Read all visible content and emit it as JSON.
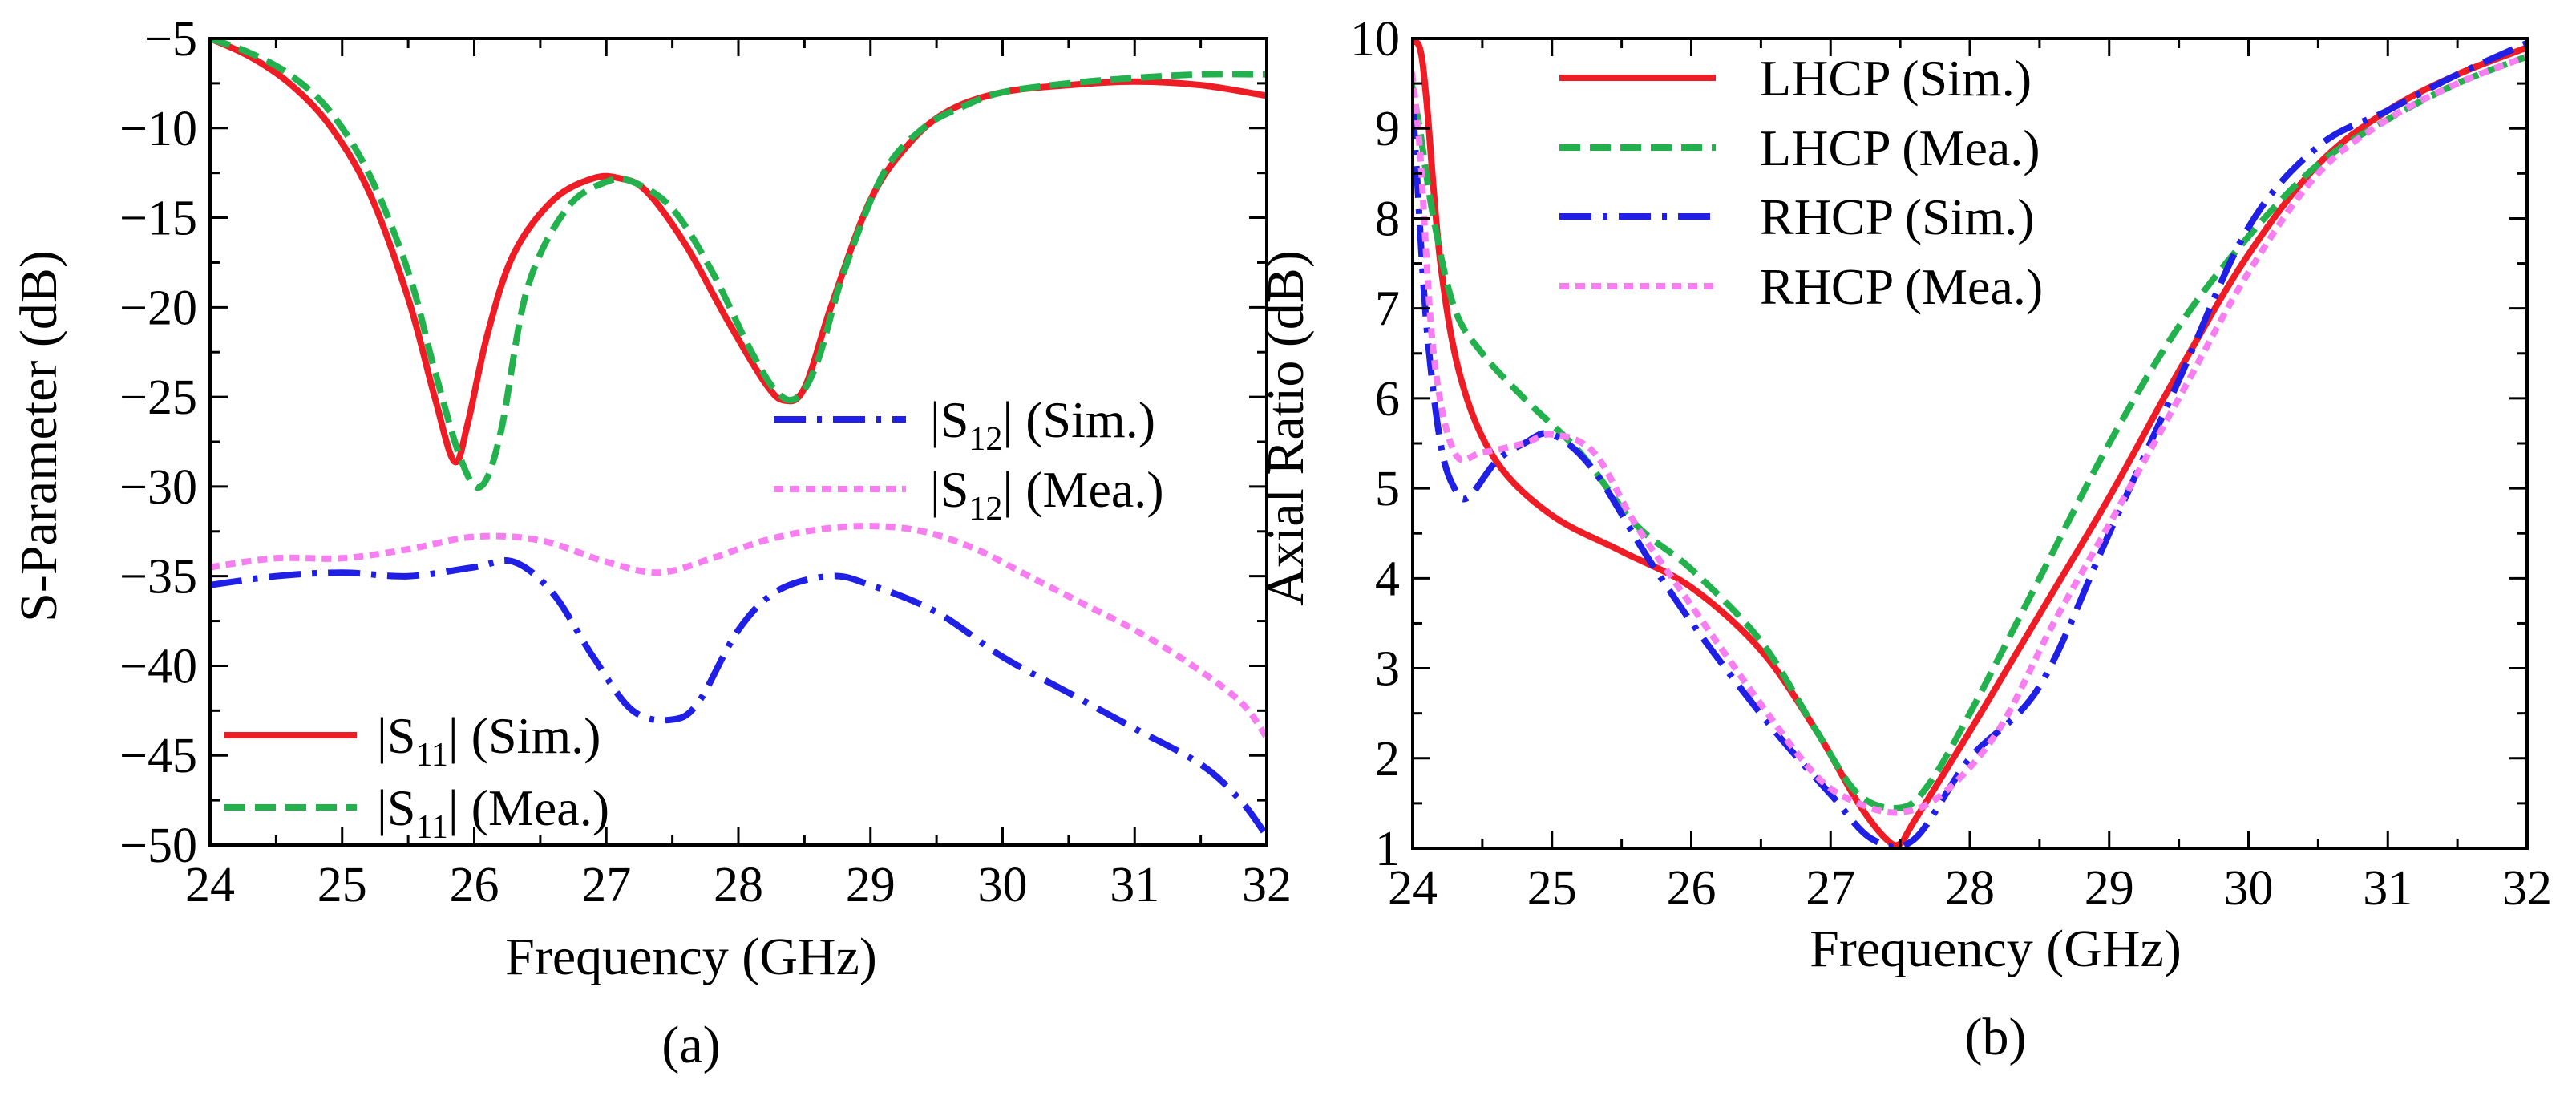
{
  "chart_data": [
    {
      "type": "line",
      "panel_label": "(a)",
      "xlabel": "Frequency (GHz)",
      "ylabel": "S-Parameter (dB)",
      "xlim": [
        24,
        32
      ],
      "ylim": [
        -50,
        -5
      ],
      "xticks": [
        24,
        25,
        26,
        27,
        28,
        29,
        30,
        31,
        32
      ],
      "yticks": [
        -5,
        -10,
        -15,
        -20,
        -25,
        -30,
        -35,
        -40,
        -45,
        -50
      ],
      "xtick_labels": [
        "24",
        "25",
        "26",
        "27",
        "28",
        "29",
        "30",
        "31",
        "32"
      ],
      "ytick_labels": [
        "−5",
        "−10",
        "−15",
        "−20",
        "−25",
        "−30",
        "−35",
        "−40",
        "−45",
        "−50"
      ],
      "series": [
        {
          "name": "|S11| (Sim.)",
          "label_main": "|S",
          "label_sub": "11",
          "label_tail": "| (Sim.)",
          "color": "#ee1c25",
          "style": "solid",
          "x": [
            24.0,
            24.3,
            24.6,
            24.9,
            25.2,
            25.5,
            25.7,
            25.85,
            25.95,
            26.1,
            26.3,
            26.6,
            26.9,
            27.1,
            27.3,
            27.6,
            27.9,
            28.2,
            28.35,
            28.5,
            28.7,
            29.0,
            29.3,
            29.6,
            30.0,
            30.5,
            31.0,
            31.5,
            32.0
          ],
          "y": [
            -5.0,
            -6.0,
            -7.5,
            -9.8,
            -13.5,
            -19.5,
            -25.0,
            -28.6,
            -26.5,
            -21.5,
            -17.0,
            -14.0,
            -12.8,
            -12.8,
            -13.5,
            -16.5,
            -20.5,
            -24.2,
            -25.2,
            -24.5,
            -20.0,
            -14.0,
            -10.8,
            -9.0,
            -8.0,
            -7.6,
            -7.4,
            -7.6,
            -8.2
          ]
        },
        {
          "name": "|S11| (Mea.)",
          "label_main": "|S",
          "label_sub": "11",
          "label_tail": "| (Mea.)",
          "color": "#22b14c",
          "style": "dashed",
          "x": [
            24.0,
            24.3,
            24.6,
            24.9,
            25.2,
            25.5,
            25.7,
            25.9,
            26.05,
            26.2,
            26.4,
            26.7,
            27.0,
            27.2,
            27.5,
            27.8,
            28.1,
            28.3,
            28.45,
            28.6,
            28.8,
            29.1,
            29.4,
            29.7,
            30.0,
            30.5,
            31.0,
            31.5,
            32.0
          ],
          "y": [
            -5.0,
            -5.8,
            -7.0,
            -9.0,
            -12.5,
            -18.0,
            -23.5,
            -28.5,
            -30.0,
            -27.0,
            -19.0,
            -14.5,
            -13.0,
            -13.0,
            -14.5,
            -18.0,
            -22.5,
            -24.8,
            -25.0,
            -23.0,
            -18.0,
            -12.5,
            -10.0,
            -8.8,
            -8.0,
            -7.5,
            -7.2,
            -7.0,
            -7.0
          ]
        },
        {
          "name": "|S12| (Sim.)",
          "label_main": "|S",
          "label_sub": "12",
          "label_tail": "| (Sim.)",
          "color": "#1f1fe6",
          "style": "dashdot",
          "x": [
            24.0,
            24.5,
            25.0,
            25.5,
            26.0,
            26.3,
            26.6,
            26.9,
            27.2,
            27.5,
            27.7,
            28.0,
            28.3,
            28.7,
            29.0,
            29.5,
            30.0,
            30.5,
            31.0,
            31.5,
            31.8,
            32.0
          ],
          "y": [
            -35.5,
            -35.0,
            -34.8,
            -35.0,
            -34.5,
            -34.2,
            -36.0,
            -39.5,
            -42.5,
            -43.0,
            -42.0,
            -38.0,
            -35.8,
            -35.0,
            -35.5,
            -37.0,
            -39.5,
            -41.5,
            -43.5,
            -45.5,
            -47.5,
            -49.5
          ]
        },
        {
          "name": "|S12| (Mea.)",
          "label_main": "|S",
          "label_sub": "12",
          "label_tail": "| (Mea.)",
          "color": "#f77ef1",
          "style": "dotted",
          "x": [
            24.0,
            24.5,
            25.0,
            25.5,
            26.0,
            26.5,
            27.0,
            27.4,
            27.8,
            28.2,
            28.6,
            29.0,
            29.4,
            29.8,
            30.2,
            30.6,
            31.0,
            31.4,
            31.8,
            32.0
          ],
          "y": [
            -34.5,
            -34.0,
            -34.0,
            -33.5,
            -32.8,
            -33.0,
            -34.2,
            -34.8,
            -34.0,
            -33.0,
            -32.4,
            -32.2,
            -32.5,
            -33.5,
            -35.0,
            -36.5,
            -38.0,
            -39.8,
            -42.0,
            -44.0
          ]
        }
      ],
      "legend_top": {
        "position": "middle-right",
        "entries": [
          "|S12| (Sim.)",
          "|S12| (Mea.)"
        ]
      },
      "legend_bottom": {
        "position": "bottom-left",
        "entries": [
          "|S11| (Sim.)",
          "|S11| (Mea.)"
        ]
      }
    },
    {
      "type": "line",
      "panel_label": "(b)",
      "xlabel": "Frequency (GHz)",
      "ylabel": "Axial Ratio (dB)",
      "xlim": [
        24,
        32
      ],
      "ylim": [
        1,
        10
      ],
      "xticks": [
        24,
        25,
        26,
        27,
        28,
        29,
        30,
        31,
        32
      ],
      "yticks": [
        1,
        2,
        3,
        4,
        5,
        6,
        7,
        8,
        9,
        10
      ],
      "xtick_labels": [
        "24",
        "25",
        "26",
        "27",
        "28",
        "29",
        "30",
        "31",
        "32"
      ],
      "ytick_labels": [
        "1",
        "2",
        "3",
        "4",
        "5",
        "6",
        "7",
        "8",
        "9",
        "10"
      ],
      "series": [
        {
          "name": "LHCP (Sim.)",
          "color": "#ee1c25",
          "style": "solid",
          "x": [
            23.98,
            24.05,
            24.1,
            24.2,
            24.35,
            24.6,
            25.0,
            25.5,
            26.0,
            26.5,
            26.9,
            27.2,
            27.4,
            27.5,
            27.6,
            28.0,
            28.5,
            29.0,
            29.5,
            30.0,
            30.5,
            31.0,
            31.5,
            32.0
          ],
          "y": [
            9.95,
            9.9,
            9.3,
            7.5,
            6.2,
            5.3,
            4.7,
            4.3,
            3.9,
            3.2,
            2.3,
            1.5,
            1.1,
            1.05,
            1.3,
            2.3,
            3.6,
            4.9,
            6.3,
            7.6,
            8.6,
            9.2,
            9.6,
            9.9
          ]
        },
        {
          "name": "LHCP (Mea.)",
          "color": "#22b14c",
          "style": "dashed",
          "x": [
            23.98,
            24.05,
            24.15,
            24.3,
            24.5,
            24.8,
            25.2,
            25.6,
            26.0,
            26.5,
            26.9,
            27.2,
            27.5,
            27.7,
            28.0,
            28.5,
            29.0,
            29.5,
            30.0,
            30.5,
            31.0,
            31.5,
            32.0
          ],
          "y": [
            9.6,
            9.0,
            8.0,
            7.0,
            6.5,
            6.0,
            5.4,
            4.6,
            4.1,
            3.3,
            2.3,
            1.6,
            1.45,
            1.7,
            2.5,
            4.0,
            5.5,
            6.8,
            7.8,
            8.6,
            9.1,
            9.5,
            9.8
          ]
        },
        {
          "name": "RHCP (Sim.)",
          "color": "#1f1fe6",
          "style": "dashdot",
          "x": [
            23.98,
            24.03,
            24.1,
            24.2,
            24.3,
            24.4,
            24.6,
            24.8,
            25.0,
            25.3,
            25.7,
            26.1,
            26.6,
            27.0,
            27.3,
            27.6,
            28.0,
            28.5,
            29.0,
            29.5,
            30.0,
            30.5,
            31.0,
            31.5,
            32.0
          ],
          "y": [
            9.9,
            8.5,
            6.8,
            5.5,
            5.0,
            4.9,
            5.3,
            5.5,
            5.6,
            5.2,
            4.2,
            3.3,
            2.3,
            1.6,
            1.1,
            1.1,
            2.0,
            2.8,
            4.5,
            6.2,
            7.9,
            8.8,
            9.2,
            9.6,
            9.95
          ]
        },
        {
          "name": "RHCP (Mea.)",
          "color": "#f77ef1",
          "style": "dotted",
          "x": [
            23.98,
            24.05,
            24.15,
            24.3,
            24.5,
            24.8,
            25.0,
            25.3,
            25.6,
            26.0,
            26.5,
            26.9,
            27.2,
            27.5,
            27.8,
            28.2,
            28.6,
            29.0,
            29.5,
            30.0,
            30.5,
            31.0,
            31.5,
            32.0
          ],
          "y": [
            9.8,
            8.8,
            6.5,
            5.4,
            5.4,
            5.5,
            5.6,
            5.4,
            4.6,
            3.7,
            2.6,
            1.8,
            1.5,
            1.4,
            1.6,
            2.3,
            3.5,
            4.6,
            6.0,
            7.4,
            8.5,
            9.1,
            9.5,
            9.8
          ]
        }
      ],
      "legend": {
        "position": "top-left",
        "entries": [
          "LHCP (Sim.)",
          "LHCP (Mea.)",
          "RHCP (Sim.)",
          "RHCP (Mea.)"
        ]
      }
    }
  ]
}
